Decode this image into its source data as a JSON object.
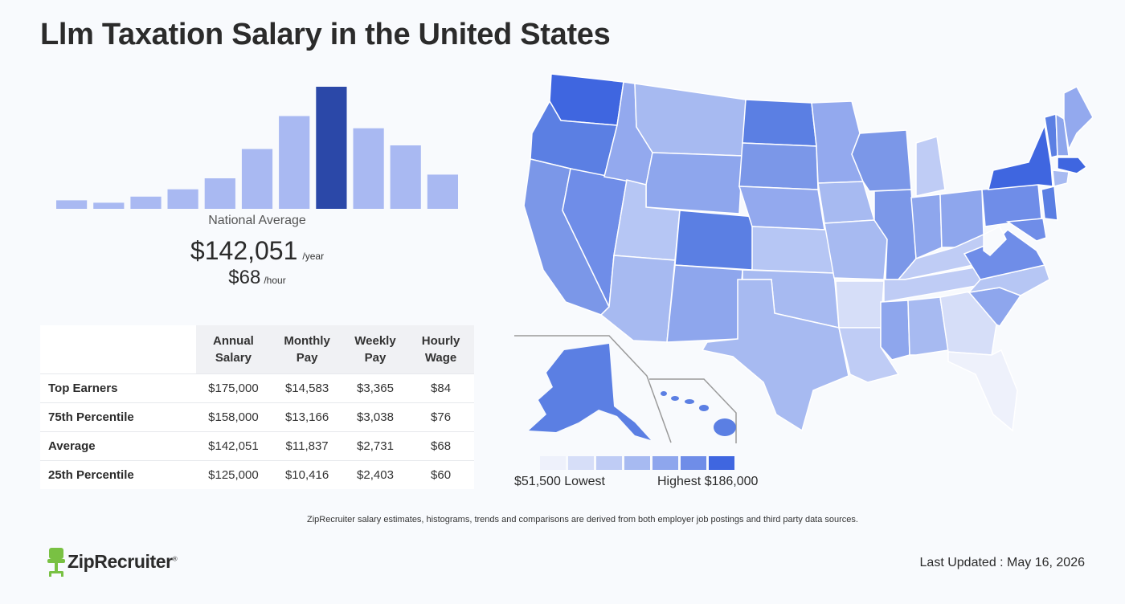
{
  "page": {
    "title": "Llm Taxation Salary in the United States",
    "disclaimer": "ZipRecruiter salary estimates, histograms, trends and comparisons are derived from both employer job postings and third party data sources.",
    "last_updated": "Last Updated : May 16, 2026",
    "brand": "ZipRecruiter",
    "brand_mark": "®"
  },
  "summary": {
    "national_average_label": "National Average",
    "annual_value": "$142,051",
    "annual_unit": "/year",
    "hourly_value": "$68",
    "hourly_unit": "/hour"
  },
  "chart_data": [
    {
      "type": "bar",
      "values": [
        7,
        5,
        10,
        16,
        25,
        49,
        76,
        100,
        66,
        52,
        28
      ],
      "highlight_index": 7,
      "colors": {
        "bar": "#a9b9f2",
        "highlight": "#2b48a8"
      },
      "ylim": [
        0,
        100
      ]
    },
    {
      "type": "table",
      "columns": [
        "Annual Salary",
        "Monthly Pay",
        "Weekly Pay",
        "Hourly Wage"
      ],
      "rows": [
        {
          "label": "Top Earners",
          "values": [
            "$175,000",
            "$14,583",
            "$3,365",
            "$84"
          ]
        },
        {
          "label": "75th Percentile",
          "values": [
            "$158,000",
            "$13,166",
            "$3,038",
            "$76"
          ]
        },
        {
          "label": "Average",
          "values": [
            "$142,051",
            "$11,837",
            "$2,731",
            "$68"
          ]
        },
        {
          "label": "25th Percentile",
          "values": [
            "$125,000",
            "$10,416",
            "$2,403",
            "$60"
          ]
        }
      ]
    },
    {
      "type": "heatmap",
      "legend": {
        "low_label": "$51,500 Lowest",
        "high_label": "Highest $186,000",
        "colors": [
          "#eef1fb",
          "#d6def8",
          "#bfccf5",
          "#a7baf1",
          "#8ea6ed",
          "#6f8de8",
          "#3f66e0"
        ]
      }
    }
  ]
}
